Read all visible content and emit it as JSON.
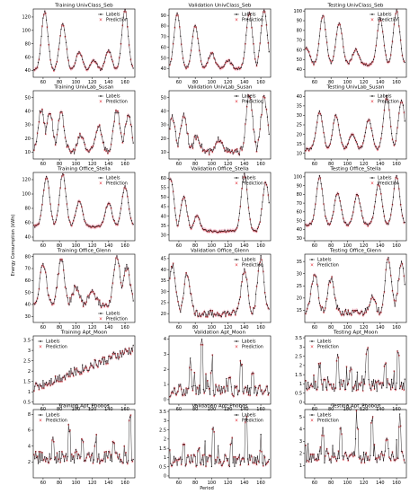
{
  "figure": {
    "ylabel": "Energy Consumption (kWh)",
    "xlabel": "Period",
    "legend": {
      "labels": "Labels",
      "prediction": "Prediction"
    },
    "colors": {
      "labels": "#1a1a1a",
      "prediction": "#e0202a",
      "band": "#f4b6c6"
    }
  },
  "chart_data": [
    {
      "type": "line",
      "title": "Training UnivClass_Seb",
      "xticks": [
        60,
        80,
        100,
        120,
        140,
        160
      ],
      "xlim": [
        48,
        172
      ],
      "yticks": [
        40,
        60,
        80,
        100,
        120
      ],
      "ylim": [
        30,
        132
      ],
      "legend": "top-right",
      "shape": "peaks",
      "base": 40,
      "peaks": [
        [
          62,
          128
        ],
        [
          84,
          110
        ],
        [
          104,
          68
        ],
        [
          122,
          55
        ],
        [
          140,
          70
        ],
        [
          160,
          130
        ]
      ]
    },
    {
      "type": "line",
      "title": "Validation UnivClass_Seb",
      "xticks": [
        60,
        80,
        100,
        120,
        140,
        160
      ],
      "xlim": [
        48,
        172
      ],
      "yticks": [
        40,
        50,
        60,
        70,
        80,
        90
      ],
      "ylim": [
        32,
        96
      ],
      "legend": "top-right",
      "shape": "peaks",
      "base": 40,
      "peaks": [
        [
          58,
          92
        ],
        [
          80,
          80
        ],
        [
          100,
          55
        ],
        [
          120,
          48
        ],
        [
          146,
          92
        ],
        [
          164,
          95
        ]
      ]
    },
    {
      "type": "line",
      "title": "Testing UnivClass_Seb",
      "xticks": [
        60,
        80,
        100,
        120,
        140,
        160
      ],
      "xlim": [
        48,
        172
      ],
      "yticks": [
        40,
        50,
        60,
        70,
        80,
        90,
        100
      ],
      "ylim": [
        32,
        102
      ],
      "legend": "top-right",
      "shape": "peaks",
      "base": 45,
      "peaks": [
        [
          50,
          62
        ],
        [
          70,
          95
        ],
        [
          90,
          88
        ],
        [
          110,
          60
        ],
        [
          140,
          92
        ],
        [
          160,
          100
        ]
      ]
    },
    {
      "type": "line",
      "title": "Training UnivLab_Susan",
      "xticks": [
        60,
        80,
        100,
        120,
        140,
        160
      ],
      "xlim": [
        48,
        172
      ],
      "yticks": [
        10,
        20,
        30,
        40,
        50
      ],
      "ylim": [
        5,
        55
      ],
      "legend": "top-right",
      "shape": "noisy-peaks",
      "base": 10,
      "peaks": [
        [
          58,
          42
        ],
        [
          68,
          40
        ],
        [
          82,
          38
        ],
        [
          106,
          22
        ],
        [
          128,
          30
        ],
        [
          150,
          40
        ],
        [
          164,
          38
        ]
      ]
    },
    {
      "type": "line",
      "title": "Validation UnivLab_Susan",
      "xticks": [
        60,
        80,
        100,
        120,
        140,
        160
      ],
      "xlim": [
        48,
        172
      ],
      "yticks": [
        10,
        20,
        30,
        40,
        50
      ],
      "ylim": [
        5,
        55
      ],
      "legend": "top-right",
      "shape": "noisy-peaks",
      "base": 10,
      "peaks": [
        [
          52,
          35
        ],
        [
          66,
          38
        ],
        [
          82,
          22
        ],
        [
          110,
          20
        ],
        [
          146,
          52
        ],
        [
          164,
          50
        ]
      ]
    },
    {
      "type": "line",
      "title": "Testing UnivLab_Susan",
      "xticks": [
        60,
        80,
        100,
        120,
        140,
        160
      ],
      "xlim": [
        48,
        172
      ],
      "yticks": [
        10,
        15,
        20,
        25,
        30,
        35,
        40
      ],
      "ylim": [
        7,
        43
      ],
      "legend": "top-right",
      "shape": "peaks",
      "base": 12,
      "peaks": [
        [
          66,
          32
        ],
        [
          86,
          30
        ],
        [
          106,
          20
        ],
        [
          126,
          28
        ],
        [
          148,
          40
        ],
        [
          166,
          38
        ]
      ]
    },
    {
      "type": "line",
      "title": "Training Office_Stella",
      "xticks": [
        60,
        80,
        100,
        120,
        140,
        160
      ],
      "xlim": [
        48,
        172
      ],
      "yticks": [
        40,
        60,
        80,
        100,
        120
      ],
      "ylim": [
        35,
        130
      ],
      "legend": "top-right",
      "shape": "peaks",
      "base": 55,
      "peaks": [
        [
          64,
          125
        ],
        [
          84,
          128
        ],
        [
          104,
          90
        ],
        [
          140,
          88
        ],
        [
          160,
          110
        ]
      ]
    },
    {
      "type": "line",
      "title": "Validation Office_Stella",
      "xticks": [
        60,
        80,
        100,
        120,
        140,
        160
      ],
      "xlim": [
        48,
        172
      ],
      "yticks": [
        30,
        35,
        40,
        45,
        50,
        55,
        60
      ],
      "ylim": [
        27,
        63
      ],
      "legend": "top-right",
      "shape": "peaks",
      "base": 32,
      "peaks": [
        [
          50,
          60
        ],
        [
          66,
          50
        ],
        [
          82,
          40
        ],
        [
          140,
          62
        ],
        [
          166,
          58
        ]
      ]
    },
    {
      "type": "line",
      "title": "Testing Office_Stella",
      "xticks": [
        60,
        80,
        100,
        120,
        140,
        160
      ],
      "xlim": [
        48,
        172
      ],
      "yticks": [
        30,
        40,
        50,
        60,
        70,
        80,
        90,
        100
      ],
      "ylim": [
        27,
        105
      ],
      "legend": "top-right",
      "shape": "peaks",
      "base": 45,
      "peaks": [
        [
          66,
          100
        ],
        [
          88,
          82
        ],
        [
          112,
          80
        ],
        [
          138,
          92
        ],
        [
          160,
          100
        ]
      ]
    },
    {
      "type": "line",
      "title": "Training Office_Glenn",
      "xticks": [
        60,
        80,
        100,
        120,
        140,
        160
      ],
      "xlim": [
        48,
        172
      ],
      "yticks": [
        30,
        40,
        50,
        60,
        70,
        80
      ],
      "ylim": [
        25,
        82
      ],
      "legend": "bottom-right",
      "shape": "noisy-peaks",
      "base": 40,
      "peaks": [
        [
          60,
          75
        ],
        [
          82,
          78
        ],
        [
          100,
          55
        ],
        [
          120,
          52
        ],
        [
          150,
          80
        ],
        [
          162,
          72
        ]
      ]
    },
    {
      "type": "line",
      "title": "Validation Office_Glenn",
      "xticks": [
        60,
        80,
        100,
        120,
        140,
        160
      ],
      "xlim": [
        48,
        172
      ],
      "yticks": [
        20,
        25,
        30,
        35,
        40,
        45
      ],
      "ylim": [
        16,
        47
      ],
      "legend": "top-right",
      "shape": "noisy-peaks",
      "base": 20,
      "peaks": [
        [
          52,
          42
        ],
        [
          70,
          38
        ],
        [
          140,
          40
        ],
        [
          160,
          45
        ]
      ]
    },
    {
      "type": "line",
      "title": "Testing Office_Glenn",
      "xticks": [
        60,
        80,
        100,
        120,
        140,
        160
      ],
      "xlim": [
        48,
        172
      ],
      "yticks": [
        15,
        20,
        25,
        30,
        35
      ],
      "ylim": [
        10,
        38
      ],
      "legend": "top-left",
      "shape": "noisy-peaks",
      "base": 14,
      "peaks": [
        [
          60,
          30
        ],
        [
          80,
          28
        ],
        [
          130,
          20
        ],
        [
          150,
          36
        ],
        [
          166,
          34
        ]
      ]
    },
    {
      "type": "line",
      "title": "Training Apt_Moon",
      "xticks": [
        60,
        80,
        100,
        120,
        140,
        160
      ],
      "xlim": [
        48,
        172
      ],
      "yticks": [
        0.5,
        1.0,
        1.5,
        2.0,
        2.5,
        3.0,
        3.5
      ],
      "ylim": [
        0.4,
        3.7
      ],
      "legend": "top-left",
      "shape": "trend",
      "base": 1.2,
      "peaks": [
        [
          160,
          3.4
        ]
      ]
    },
    {
      "type": "line",
      "title": "Validation Apt_Moon",
      "xticks": [
        60,
        80,
        100,
        120,
        140,
        160
      ],
      "xlim": [
        48,
        172
      ],
      "yticks": [
        0,
        1,
        2,
        3,
        4
      ],
      "ylim": [
        -0.3,
        4.2
      ],
      "legend": "top-right",
      "shape": "spikes",
      "base": 0.2,
      "peaks": [
        [
          74,
          2.2
        ],
        [
          88,
          4.0
        ],
        [
          100,
          2.0
        ],
        [
          122,
          1.5
        ],
        [
          136,
          2.6
        ],
        [
          150,
          1.8
        ]
      ]
    },
    {
      "type": "line",
      "title": "Testing Apt_Moon",
      "xticks": [
        60,
        80,
        100,
        120,
        140,
        160
      ],
      "xlim": [
        48,
        172
      ],
      "yticks": [
        0.0,
        0.5,
        1.0,
        1.5,
        2.0,
        2.5,
        3.0,
        3.5
      ],
      "ylim": [
        -0.1,
        3.6
      ],
      "legend": "top-left",
      "shape": "spikes",
      "base": 0.6,
      "peaks": [
        [
          66,
          2.2
        ],
        [
          88,
          2.6
        ],
        [
          104,
          2.0
        ],
        [
          124,
          3.0
        ],
        [
          146,
          2.2
        ],
        [
          162,
          2.8
        ]
      ]
    },
    {
      "type": "line",
      "title": "Training Apt_Phobos",
      "xticks": [
        60,
        80,
        100,
        120,
        140,
        160
      ],
      "xlim": [
        48,
        172
      ],
      "yticks": [
        2,
        4,
        6,
        8
      ],
      "ylim": [
        0,
        8.6
      ],
      "legend": "top-left",
      "shape": "spikes",
      "base": 1.8,
      "peaks": [
        [
          72,
          5.2
        ],
        [
          92,
          6.8
        ],
        [
          108,
          5.0
        ],
        [
          124,
          4.5
        ],
        [
          146,
          5.0
        ],
        [
          166,
          8.2
        ]
      ]
    },
    {
      "type": "line",
      "title": "Validation Apt_Phobos",
      "xticks": [
        60,
        80,
        100,
        120,
        140,
        160
      ],
      "xlim": [
        48,
        172
      ],
      "yticks": [
        0.0,
        0.5,
        1.0,
        1.5,
        2.0,
        2.5,
        3.0,
        3.5
      ],
      "ylim": [
        -0.1,
        3.6
      ],
      "legend": "top-right",
      "shape": "spikes",
      "base": 0.5,
      "peaks": [
        [
          66,
          2.0
        ],
        [
          84,
          1.6
        ],
        [
          102,
          2.8
        ],
        [
          124,
          1.8
        ],
        [
          142,
          3.3
        ],
        [
          160,
          1.5
        ]
      ]
    },
    {
      "type": "line",
      "title": "Testing Apt_Phobos",
      "xticks": [
        60,
        80,
        100,
        120,
        140,
        160
      ],
      "xlim": [
        48,
        172
      ],
      "yticks": [
        1,
        2,
        3,
        4,
        5
      ],
      "ylim": [
        0,
        5.6
      ],
      "legend": "top-left",
      "shape": "spikes",
      "base": 1.2,
      "peaks": [
        [
          70,
          3.8
        ],
        [
          92,
          4.2
        ],
        [
          112,
          4.6
        ],
        [
          130,
          5.3
        ],
        [
          148,
          3.6
        ],
        [
          164,
          4.4
        ]
      ]
    }
  ]
}
